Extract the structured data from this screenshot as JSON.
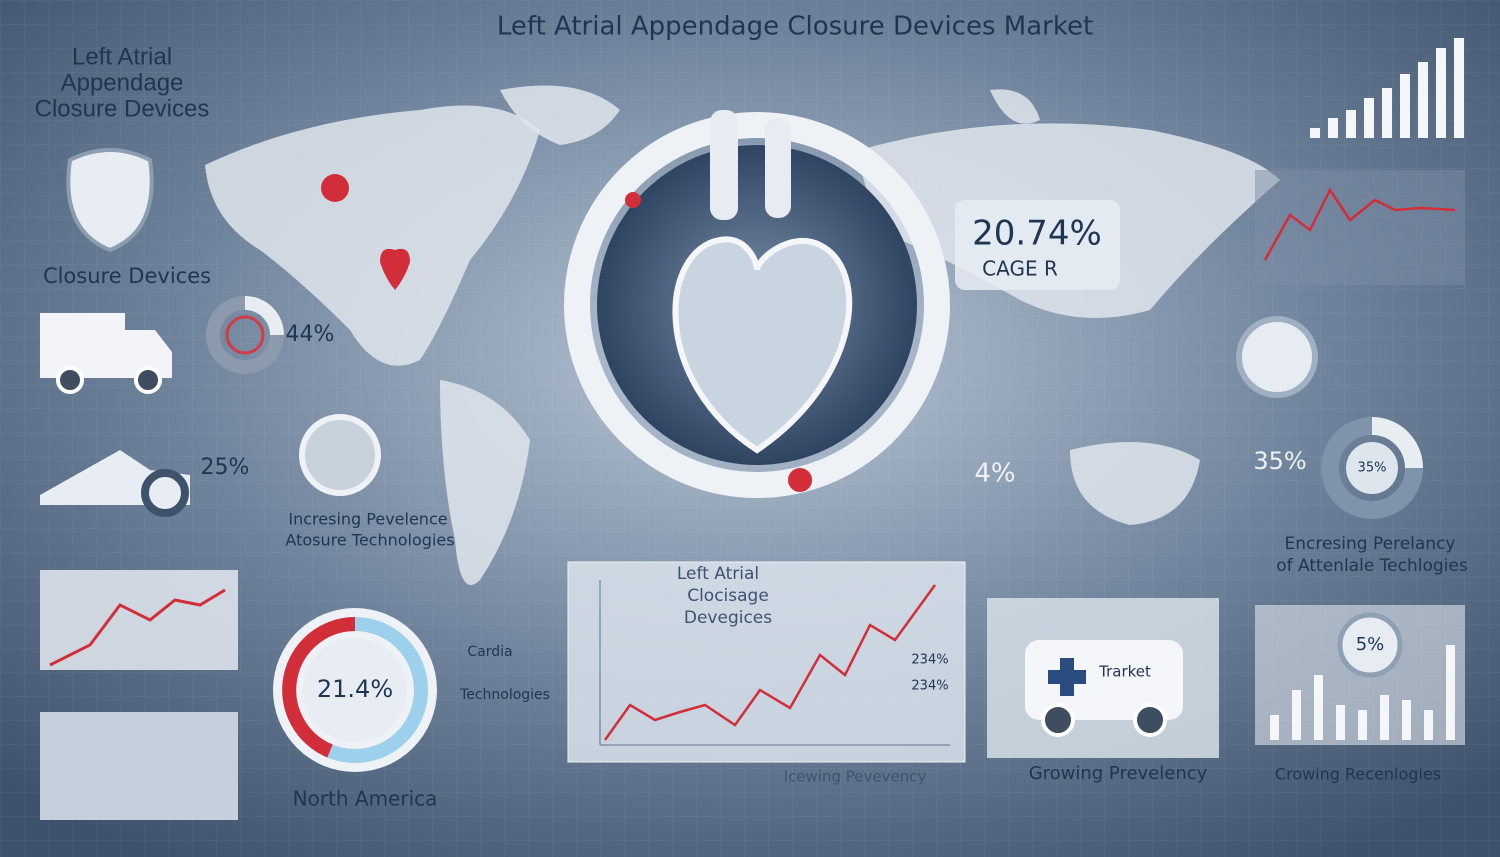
{
  "header": {
    "title": "Left Atrial Appendage Closure Devices Market"
  },
  "left_panel": {
    "heading_lines": [
      "Left Atrial",
      "Appendage",
      "Closure Devices"
    ],
    "label": "Closure Devices",
    "donut_value": "44%",
    "truck_value": "25%",
    "caption_lines": [
      "Incresing Pevelence",
      "Atosure Technologies"
    ]
  },
  "center": {
    "cagr_value": "20.74%",
    "cagr_label": "CAGE R",
    "side_value": "4%"
  },
  "right_panel": {
    "donut_value": "35%",
    "donut_center": "35%",
    "caption_lines": [
      "Encresing Perelancy",
      "of Attenlale Techlogies"
    ],
    "bar_value": "5%",
    "bar_caption": "Crowing Recenlogies"
  },
  "bottom": {
    "gauge_value": "21.4%",
    "gauge_caption": "North America",
    "side_lines": [
      "Cardia",
      "Technologies"
    ],
    "chart_title_lines": [
      "Left Atrial",
      "Clocisage",
      "Devegices"
    ],
    "chart_labels": [
      "234%",
      "234%"
    ],
    "chart_caption": "Icewing Pevevency",
    "van_label": "Trarket",
    "van_caption": "Growing Prevelency"
  }
}
